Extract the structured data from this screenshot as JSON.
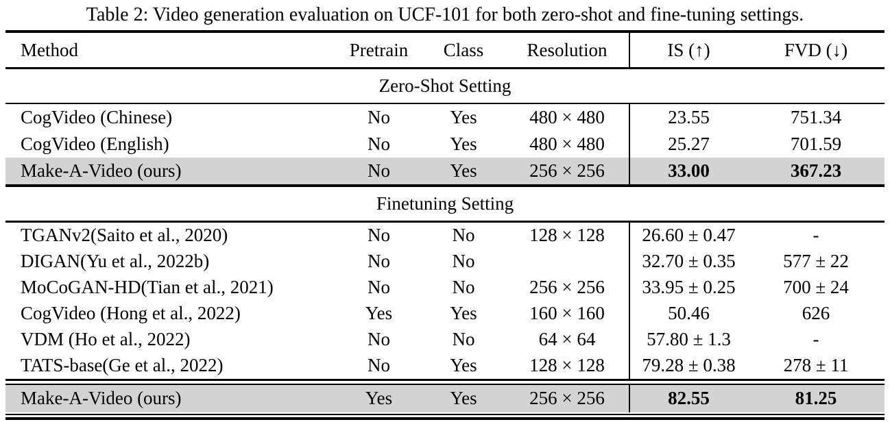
{
  "title": "Table 2: Video generation evaluation on UCF-101 for both zero-shot and fine-tuning settings.",
  "columns": [
    "Method",
    "Pretrain",
    "Class",
    "Resolution",
    "IS (↑)",
    "FVD (↓)"
  ],
  "colors": {
    "highlight_row": "#d3d3d3",
    "rule": "#000000"
  },
  "sections": [
    {
      "label": "Zero-Shot Setting",
      "rows": [
        {
          "cells": [
            "CogVideo (Chinese)",
            "No",
            "Yes",
            "480 × 480",
            "23.55",
            "751.34"
          ],
          "highlight": false,
          "bold_metrics": false,
          "double_rule_before": false
        },
        {
          "cells": [
            "CogVideo (English)",
            "No",
            "Yes",
            "480 × 480",
            "25.27",
            "701.59"
          ],
          "highlight": false,
          "bold_metrics": false,
          "double_rule_before": false
        },
        {
          "cells": [
            "Make-A-Video (ours)",
            "No",
            "Yes",
            "256 × 256",
            "33.00",
            "367.23"
          ],
          "highlight": true,
          "bold_metrics": true,
          "double_rule_before": false
        }
      ]
    },
    {
      "label": "Finetuning Setting",
      "rows": [
        {
          "cells": [
            "TGANv2(Saito et al., 2020)",
            "No",
            "No",
            "128 × 128",
            "26.60 ± 0.47",
            "-"
          ],
          "highlight": false,
          "bold_metrics": false,
          "double_rule_before": false
        },
        {
          "cells": [
            "DIGAN(Yu et al., 2022b)",
            "No",
            "No",
            "",
            "32.70 ± 0.35",
            "577 ± 22"
          ],
          "highlight": false,
          "bold_metrics": false,
          "double_rule_before": false
        },
        {
          "cells": [
            "MoCoGAN-HD(Tian et al., 2021)",
            "No",
            "No",
            "256 × 256",
            "33.95 ± 0.25",
            "700 ± 24"
          ],
          "highlight": false,
          "bold_metrics": false,
          "double_rule_before": false
        },
        {
          "cells": [
            "CogVideo (Hong et al., 2022)",
            "Yes",
            "Yes",
            "160 × 160",
            "50.46",
            "626"
          ],
          "highlight": false,
          "bold_metrics": false,
          "double_rule_before": false
        },
        {
          "cells": [
            "VDM (Ho et al., 2022)",
            "No",
            "No",
            "64 × 64",
            "57.80 ± 1.3",
            "-"
          ],
          "highlight": false,
          "bold_metrics": false,
          "double_rule_before": false
        },
        {
          "cells": [
            "TATS-base(Ge et al., 2022)",
            "No",
            "Yes",
            "128 × 128",
            "79.28 ± 0.38",
            "278 ± 11"
          ],
          "highlight": false,
          "bold_metrics": false,
          "double_rule_before": false
        },
        {
          "cells": [
            "Make-A-Video (ours)",
            "Yes",
            "Yes",
            "256 × 256",
            "82.55",
            "81.25"
          ],
          "highlight": true,
          "bold_metrics": true,
          "double_rule_before": true
        }
      ]
    }
  ]
}
